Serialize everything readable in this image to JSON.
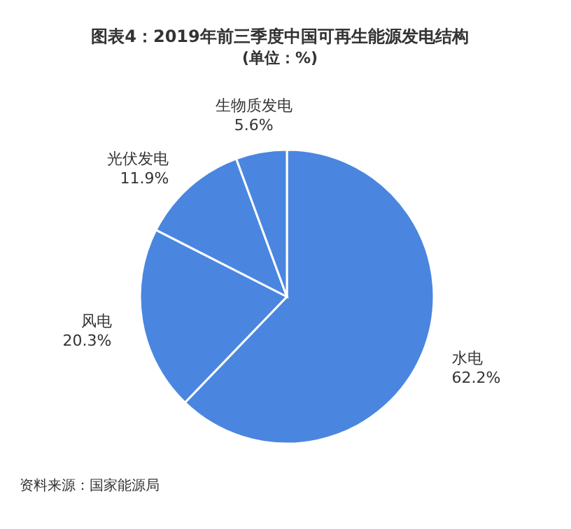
{
  "chart_data": {
    "type": "pie",
    "title": "图表4：2019年前三季度中国可再生能源发电结构",
    "subtitle": "(单位：%)",
    "categories": [
      "水电",
      "风电",
      "光伏发电",
      "生物质发电"
    ],
    "values": [
      62.2,
      20.3,
      11.9,
      5.6
    ],
    "colors": [
      "#4a86e0",
      "#4a86e0",
      "#4a86e0",
      "#4a86e0"
    ],
    "value_labels": [
      "62.2%",
      "20.3%",
      "11.9%",
      "5.6%"
    ],
    "annotations": [
      "资料来源：国家能源局"
    ]
  }
}
